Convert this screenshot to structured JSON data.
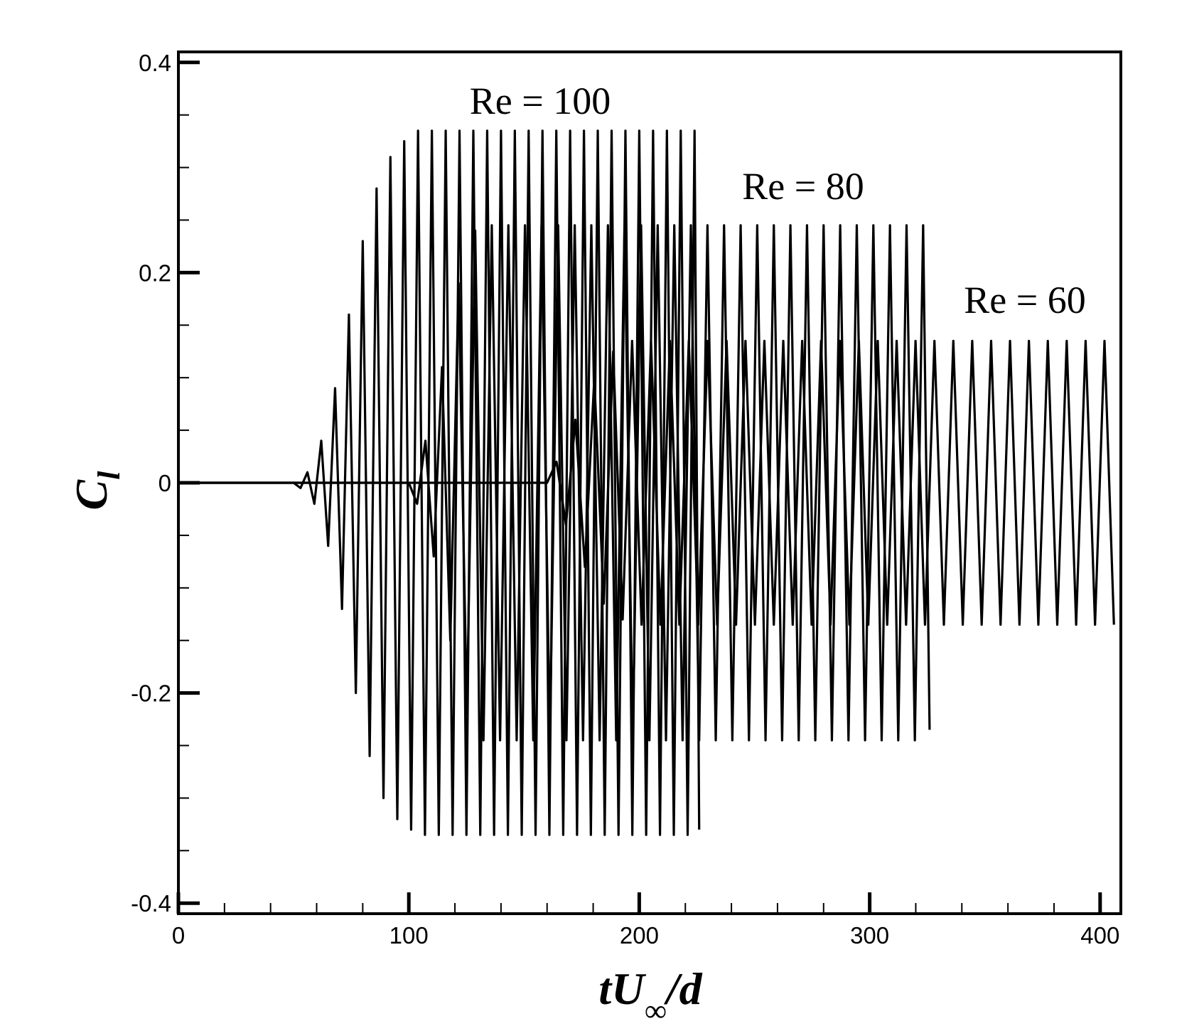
{
  "chart_data": {
    "type": "line",
    "xlabel": [
      "tU",
      "∞",
      "/d"
    ],
    "ylabel": [
      "C",
      "l"
    ],
    "xlim": [
      0,
      409
    ],
    "ylim": [
      -0.41,
      0.41
    ],
    "xticks": [
      0,
      100,
      200,
      300,
      400
    ],
    "yticks": [
      -0.4,
      -0.2,
      0,
      0.2,
      0.4
    ],
    "xminorticks": [
      20,
      40,
      60,
      80,
      120,
      140,
      160,
      180,
      220,
      240,
      260,
      280,
      320,
      340,
      360,
      380
    ],
    "yminorticks": [
      -0.35,
      -0.3,
      -0.25,
      -0.15,
      -0.1,
      -0.05,
      0.05,
      0.1,
      0.15,
      0.25,
      0.3,
      0.35
    ],
    "grid": false,
    "series": [
      {
        "name": "Re = 100",
        "color": "#000000",
        "x": [
          0,
          50,
          53,
          56,
          59,
          62,
          65,
          68,
          71,
          74,
          77,
          80,
          83,
          86,
          89,
          92,
          95,
          98,
          101,
          104,
          107,
          110,
          113,
          116,
          119,
          122,
          125,
          128,
          131,
          134,
          137,
          140,
          143,
          146,
          149,
          152,
          155,
          158,
          161,
          164,
          167,
          170,
          173,
          176,
          179,
          182,
          185,
          188,
          191,
          194,
          197,
          200,
          203,
          206,
          209,
          212,
          215,
          218,
          221,
          224,
          226
        ],
        "values": [
          0,
          0,
          -0.005,
          0.01,
          -0.02,
          0.04,
          -0.06,
          0.09,
          -0.12,
          0.16,
          -0.2,
          0.23,
          -0.26,
          0.28,
          -0.3,
          0.31,
          -0.32,
          0.325,
          -0.33,
          0.335,
          -0.335,
          0.335,
          -0.335,
          0.335,
          -0.335,
          0.335,
          -0.335,
          0.335,
          -0.335,
          0.335,
          -0.335,
          0.335,
          -0.335,
          0.335,
          -0.335,
          0.335,
          -0.335,
          0.335,
          -0.335,
          0.335,
          -0.335,
          0.335,
          -0.335,
          0.335,
          -0.335,
          0.335,
          -0.335,
          0.335,
          -0.335,
          0.335,
          -0.335,
          0.335,
          -0.335,
          0.335,
          -0.335,
          0.335,
          -0.335,
          0.335,
          -0.335,
          0.335,
          -0.33
        ]
      },
      {
        "name": "Re = 80",
        "color": "#000000",
        "x": [
          0,
          100,
          103.6,
          107.2,
          110.8,
          114.4,
          118,
          121.6,
          125.2,
          128.8,
          132.4,
          136,
          139.6,
          143.2,
          146.8,
          150.4,
          154,
          157.6,
          161.2,
          164.8,
          168.4,
          172,
          175.6,
          179.2,
          182.8,
          186.4,
          190,
          193.6,
          197.2,
          200.8,
          204.4,
          208,
          211.6,
          215.2,
          218.8,
          222.4,
          226,
          229.6,
          233.2,
          236.8,
          240.4,
          244,
          247.6,
          251.2,
          254.8,
          258.4,
          262,
          265.6,
          269.2,
          272.8,
          276.4,
          280,
          283.6,
          287.2,
          290.8,
          294.4,
          298,
          301.6,
          305.2,
          308.8,
          312.4,
          316,
          319.6,
          323.2,
          326
        ],
        "values": [
          0,
          0,
          -0.02,
          0.04,
          -0.07,
          0.11,
          -0.15,
          0.19,
          -0.22,
          0.24,
          -0.245,
          0.245,
          -0.245,
          0.245,
          -0.245,
          0.245,
          -0.245,
          0.245,
          -0.245,
          0.245,
          -0.245,
          0.245,
          -0.245,
          0.245,
          -0.245,
          0.245,
          -0.245,
          0.245,
          -0.245,
          0.245,
          -0.245,
          0.245,
          -0.245,
          0.245,
          -0.245,
          0.245,
          -0.245,
          0.245,
          -0.245,
          0.245,
          -0.245,
          0.245,
          -0.245,
          0.245,
          -0.245,
          0.245,
          -0.245,
          0.245,
          -0.245,
          0.245,
          -0.245,
          0.245,
          -0.245,
          0.245,
          -0.245,
          0.245,
          -0.245,
          0.245,
          -0.245,
          0.245,
          -0.245,
          0.245,
          -0.245,
          0.245,
          -0.235
        ]
      },
      {
        "name": "Re = 60",
        "color": "#000000",
        "x": [
          0,
          160,
          164.1,
          168.2,
          172.3,
          176.4,
          180.5,
          184.6,
          188.7,
          192.8,
          196.9,
          201,
          205.1,
          209.2,
          213.3,
          217.4,
          221.5,
          225.6,
          229.7,
          233.8,
          237.9,
          242,
          246.1,
          250.2,
          254.3,
          258.4,
          262.5,
          266.6,
          270.7,
          274.8,
          278.9,
          283,
          287.1,
          291.2,
          295.3,
          299.4,
          303.5,
          307.6,
          311.7,
          315.8,
          319.9,
          324,
          328.1,
          332.2,
          336.3,
          340.4,
          344.5,
          348.6,
          352.7,
          356.8,
          360.9,
          365,
          369.1,
          373.2,
          377.3,
          381.4,
          385.5,
          389.6,
          393.7,
          397.8,
          401.9,
          406
        ],
        "values": [
          0,
          0,
          0.02,
          -0.04,
          0.06,
          -0.08,
          0.1,
          -0.115,
          0.125,
          -0.13,
          0.135,
          -0.135,
          0.135,
          -0.135,
          0.135,
          -0.135,
          0.135,
          -0.135,
          0.135,
          -0.135,
          0.135,
          -0.135,
          0.135,
          -0.135,
          0.135,
          -0.135,
          0.135,
          -0.135,
          0.135,
          -0.135,
          0.135,
          -0.135,
          0.135,
          -0.135,
          0.135,
          -0.135,
          0.135,
          -0.135,
          0.135,
          -0.135,
          0.135,
          -0.135,
          0.135,
          -0.135,
          0.135,
          -0.135,
          0.135,
          -0.135,
          0.135,
          -0.135,
          0.135,
          -0.135,
          0.135,
          -0.135,
          0.135,
          -0.135,
          0.135,
          -0.135,
          0.135,
          -0.135,
          0.135,
          -0.135
        ]
      }
    ]
  }
}
